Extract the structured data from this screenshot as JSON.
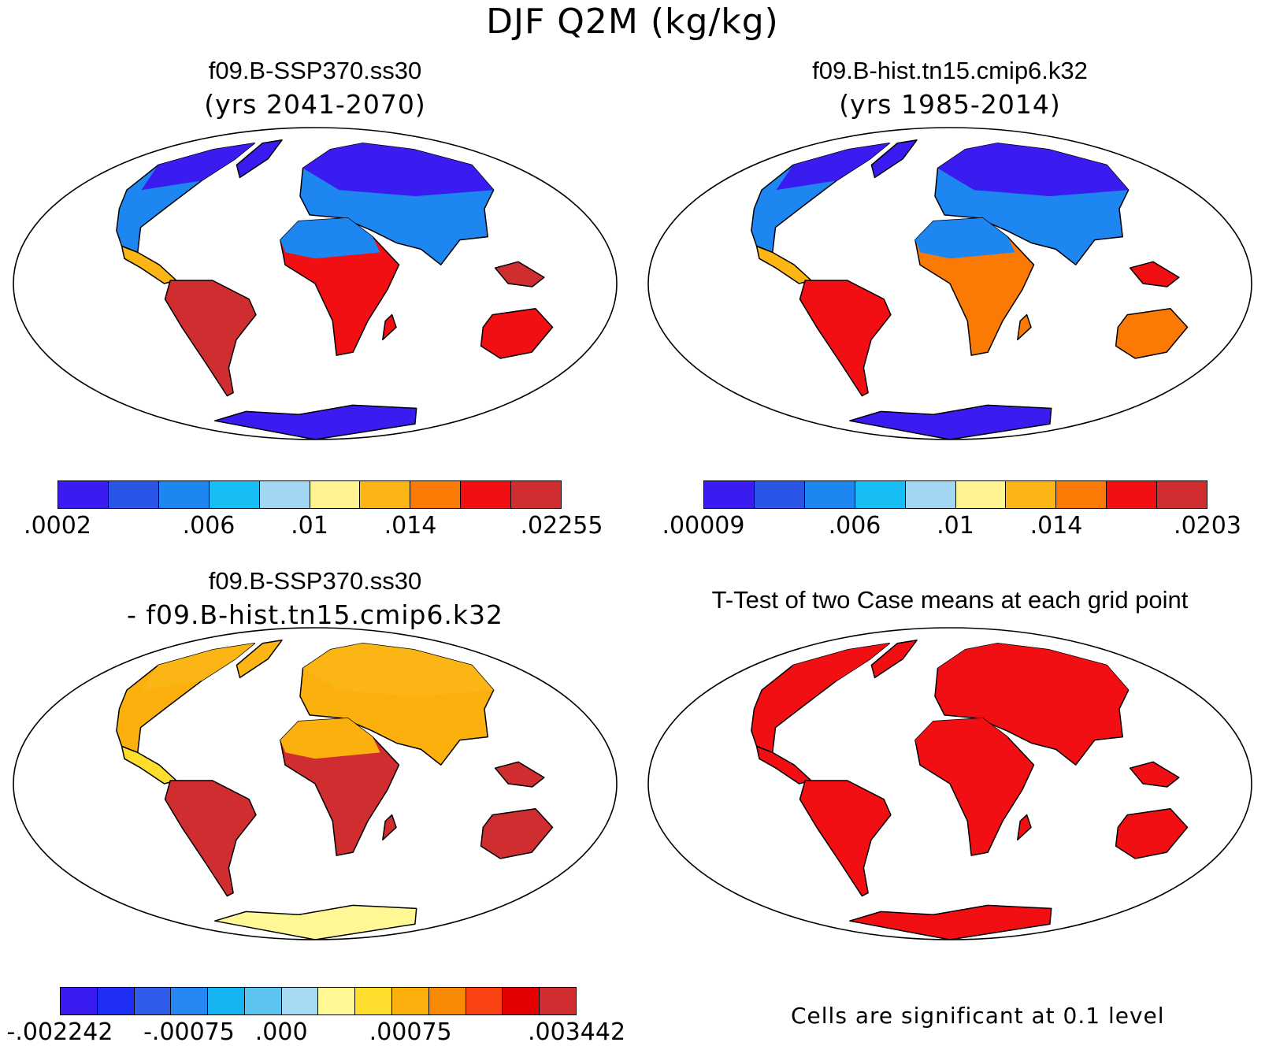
{
  "main_title": "DJF Q2M (kg/kg)",
  "panels": [
    {
      "title": "f09.B-SSP370.ss30",
      "subtitle": "(yrs 2041-2070)",
      "colors": [
        "#3b1cf0",
        "#2b55e6",
        "#1e86f0",
        "#17bdf5",
        "#a3d6f2",
        "#fff48f",
        "#fbb616",
        "#fb7a05",
        "#f10f14",
        "#d02d31"
      ],
      "ticks": [
        ".0002",
        ".006",
        ".01",
        ".014",
        ".02255"
      ],
      "tick_positions": [
        0,
        0.3,
        0.5,
        0.7,
        1
      ],
      "land": {
        "north": "#3b1cf0",
        "mid": "#1e86f0",
        "sub": "#fbb616",
        "trop": "#d02d31",
        "south": "#f10f14",
        "ant": "#3b1cf0"
      }
    },
    {
      "title": "f09.B-hist.tn15.cmip6.k32",
      "subtitle": "(yrs 1985-2014)",
      "colors": [
        "#3b1cf0",
        "#2b55e6",
        "#1e86f0",
        "#17bdf5",
        "#a3d6f2",
        "#fff48f",
        "#fbb616",
        "#fb7a05",
        "#f10f14",
        "#d02d31"
      ],
      "ticks": [
        ".00009",
        ".006",
        ".01",
        ".014",
        ".0203"
      ],
      "tick_positions": [
        0,
        0.3,
        0.5,
        0.7,
        1
      ],
      "land": {
        "north": "#3b1cf0",
        "mid": "#1e86f0",
        "sub": "#fbb616",
        "trop": "#f10f14",
        "south": "#fb7a05",
        "ant": "#3b1cf0"
      }
    },
    {
      "title": "f09.B-SSP370.ss30",
      "subtitle": "- f09.B-hist.tn15.cmip6.k32",
      "colors": [
        "#3b1cf0",
        "#1e2ef5",
        "#2f5ce8",
        "#2687f2",
        "#15b3f0",
        "#5cc4f0",
        "#a6daf2",
        "#fff894",
        "#fedd2c",
        "#fbb00e",
        "#f98a06",
        "#f94312",
        "#e30000",
        "#d02d31"
      ],
      "ticks": [
        "-.002242",
        "-.00075",
        ".000",
        ".00075",
        ".003442"
      ],
      "tick_positions": [
        0,
        0.25,
        0.4286,
        0.6786,
        1
      ],
      "land": {
        "north": "#fbb616",
        "mid": "#fbb00e",
        "sub": "#fedd2c",
        "trop": "#d02d31",
        "south": "#d02d31",
        "ant": "#fff894"
      }
    },
    {
      "title": "T-Test of two Case means at each grid point",
      "land": {
        "north": "#f10f14",
        "mid": "#f10f14",
        "sub": "#f10f14",
        "trop": "#f10f14",
        "south": "#f10f14",
        "ant": "#f10f14"
      }
    }
  ],
  "significance_note": "Cells are significant at 0.1 level"
}
